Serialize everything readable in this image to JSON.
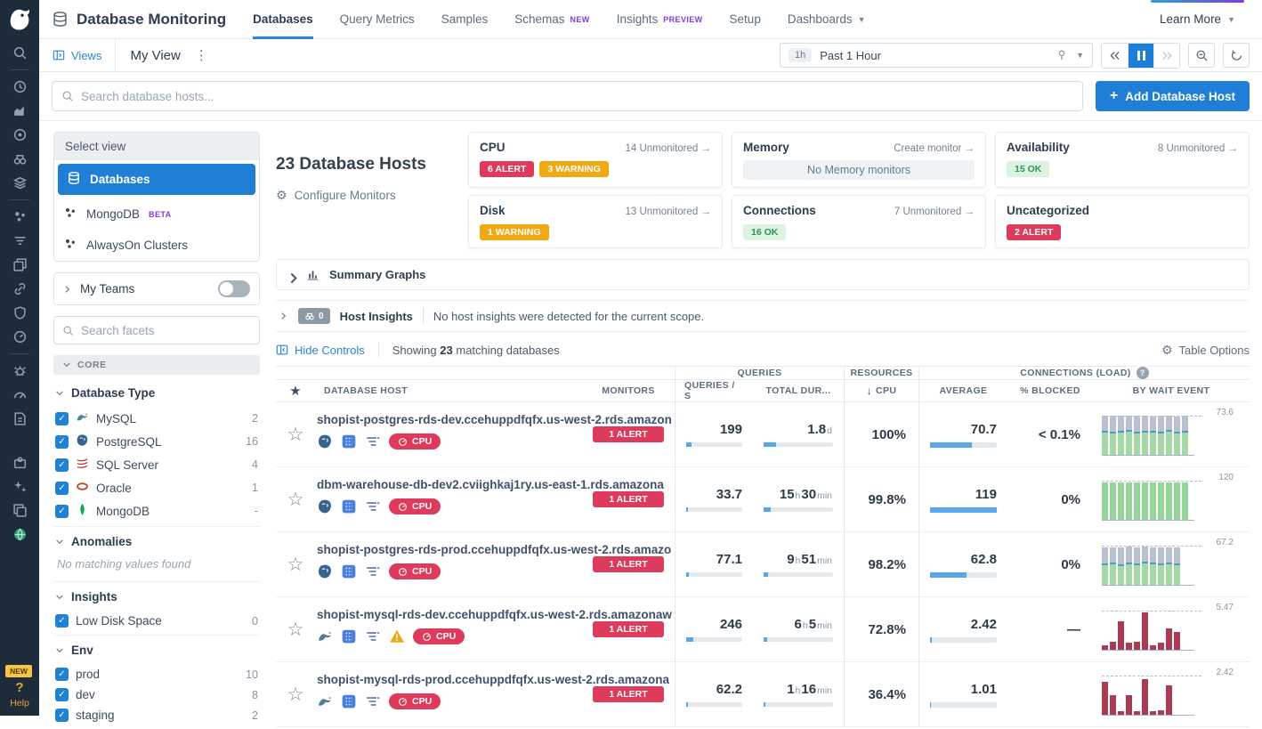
{
  "colors": {
    "accent_blue": "#1f7fd6",
    "alert_red": "#de3b5c",
    "warning_orange": "#f0a913",
    "ok_green": "#2d9552",
    "beta_purple": "#8637e0",
    "rail_bg": "#1e2b3a"
  },
  "topnav": {
    "title": "Database Monitoring",
    "tabs": [
      {
        "label": "Databases",
        "active": true
      },
      {
        "label": "Query Metrics"
      },
      {
        "label": "Samples"
      },
      {
        "label": "Schemas",
        "badge": "NEW"
      },
      {
        "label": "Insights",
        "badge": "PREVIEW"
      },
      {
        "label": "Setup"
      },
      {
        "label": "Dashboards",
        "caret": true
      }
    ],
    "learn_more": "Learn More"
  },
  "toolbar": {
    "views_label": "Views",
    "view_name": "My View",
    "time_chip": "1h",
    "time_label": "Past 1 Hour"
  },
  "search": {
    "placeholder": "Search database hosts...",
    "add_button": "Add Database Host"
  },
  "rail": {
    "items": [
      "search",
      "|",
      "history",
      "area-chart",
      "target",
      "binoculars",
      "layers",
      "|",
      "cluster",
      "filter",
      "windows",
      "link",
      "shield",
      "gauge",
      "|",
      "bug",
      "speedometer",
      "doc-search",
      "gap",
      "puzzle",
      "sparkles",
      "copy",
      "globe"
    ],
    "new_badge": "NEW",
    "help_q": "?",
    "help_label": "Help"
  },
  "facets": {
    "select_view": {
      "header": "Select view",
      "items": [
        {
          "label": "Databases",
          "icon": "database",
          "active": true
        },
        {
          "label": "MongoDB",
          "icon": "cluster",
          "badge": "BETA"
        },
        {
          "label": "AlwaysOn Clusters",
          "icon": "cluster"
        }
      ]
    },
    "my_teams": "My Teams",
    "search_placeholder": "Search facets",
    "core_label": "CORE",
    "groups": [
      {
        "title": "Database Type",
        "items": [
          {
            "label": "MySQL",
            "count": "2",
            "icon": "mysql"
          },
          {
            "label": "PostgreSQL",
            "count": "16",
            "icon": "postgres"
          },
          {
            "label": "SQL Server",
            "count": "4",
            "icon": "sqlserver"
          },
          {
            "label": "Oracle",
            "count": "1",
            "icon": "oracle"
          },
          {
            "label": "MongoDB",
            "count": "-",
            "icon": "mongodb"
          }
        ]
      },
      {
        "title": "Anomalies",
        "empty_message": "No matching values found",
        "items": []
      },
      {
        "title": "Insights",
        "items": [
          {
            "label": "Low Disk Space",
            "count": "0"
          }
        ]
      },
      {
        "title": "Env",
        "items": [
          {
            "label": "prod",
            "count": "10"
          },
          {
            "label": "dev",
            "count": "8"
          },
          {
            "label": "staging",
            "count": "2"
          }
        ]
      }
    ]
  },
  "overview": {
    "title": "23 Database Hosts",
    "configure": "Configure Monitors",
    "cards": [
      {
        "title": "CPU",
        "action": "14 Unmonitored",
        "badges": [
          {
            "text": "6 ALERT",
            "type": "alert"
          },
          {
            "text": "3 WARNING",
            "type": "warning"
          }
        ]
      },
      {
        "title": "Memory",
        "action": "Create monitor",
        "note": "No Memory monitors"
      },
      {
        "title": "Availability",
        "action": "8 Unmonitored",
        "badges": [
          {
            "text": "15 OK",
            "type": "ok"
          }
        ]
      },
      {
        "title": "Disk",
        "action": "13 Unmonitored",
        "badges": [
          {
            "text": "1 WARNING",
            "type": "warning"
          }
        ]
      },
      {
        "title": "Connections",
        "action": "7 Unmonitored",
        "badges": [
          {
            "text": "16 OK",
            "type": "ok"
          }
        ]
      },
      {
        "title": "Uncategorized",
        "badges": [
          {
            "text": "2 ALERT",
            "type": "alert"
          }
        ]
      }
    ]
  },
  "summary_graphs": {
    "label": "Summary Graphs"
  },
  "host_insights": {
    "count": "0",
    "label": "Host Insights",
    "message": "No host insights were detected for the current scope."
  },
  "controls": {
    "hide_label": "Hide Controls",
    "showing_prefix": "Showing",
    "showing_count": "23",
    "showing_suffix": "matching databases",
    "table_options": "Table Options"
  },
  "table": {
    "group_headers": {
      "queries": "QUERIES",
      "resources": "RESOURCES",
      "connections": "CONNECTIONS (LOAD)"
    },
    "columns": {
      "host": "DATABASE HOST",
      "monitors": "MONITORS",
      "queries_s": "QUERIES / S",
      "total_dur": "TOTAL DUR...",
      "cpu": "CPU",
      "average": "AVERAGE",
      "blocked": "% BLOCKED",
      "wait": "BY WAIT EVENT"
    },
    "rows": [
      {
        "host": "shopist-postgres-rds-dev.ccehuppdfqfx.us-west-2.rds.amazon",
        "icons": [
          "postgres",
          "rds",
          "pipeline"
        ],
        "tags": [
          "CPU"
        ],
        "monitor": "1 ALERT",
        "queries": {
          "v": "199",
          "bar": 10
        },
        "dur": {
          "parts": [
            [
              "1.8",
              "d"
            ]
          ],
          "bar": 18
        },
        "cpu": "100%",
        "avg": {
          "v": "70.7",
          "bar": 62
        },
        "blocked": "< 0.1%",
        "wait": {
          "label": "73.6",
          "kind": "stacked",
          "bars": [
            [
              0.57,
              0.38
            ],
            [
              0.55,
              0.4
            ],
            [
              0.56,
              0.39
            ],
            [
              0.6,
              0.35
            ],
            [
              0.54,
              0.42
            ],
            [
              0.57,
              0.39
            ],
            [
              0.56,
              0.38
            ],
            [
              0.55,
              0.41
            ],
            [
              0.58,
              0.37
            ],
            [
              0.54,
              0.4
            ],
            [
              0.57,
              0.38
            ]
          ]
        }
      },
      {
        "host": "dbm-warehouse-db-dev2.cviighkaj1ry.us-east-1.rds.amazona",
        "icons": [
          "postgres",
          "rds",
          "pipeline"
        ],
        "tags": [
          "CPU"
        ],
        "monitor": "1 ALERT",
        "queries": {
          "v": "33.7",
          "bar": 3
        },
        "dur": {
          "parts": [
            [
              "15",
              "h"
            ],
            [
              "30",
              "min"
            ]
          ],
          "bar": 10
        },
        "cpu": "99.8%",
        "avg": {
          "v": "119",
          "bar": 100
        },
        "blocked": "0%",
        "wait": {
          "label": "120",
          "kind": "green",
          "bars": [
            0.95,
            0.95,
            0.95,
            0.95,
            0.95,
            0.95,
            0.95,
            0.95,
            0.95,
            0.95,
            0.95
          ]
        }
      },
      {
        "host": "shopist-postgres-rds-prod.ccehuppdfqfx.us-west-2.rds.amazo",
        "icons": [
          "postgres",
          "rds",
          "pipeline"
        ],
        "tags": [
          "CPU"
        ],
        "monitor": "1 ALERT",
        "queries": {
          "v": "77.1",
          "bar": 4
        },
        "dur": {
          "parts": [
            [
              "9",
              "h"
            ],
            [
              "51",
              "min"
            ]
          ],
          "bar": 6
        },
        "cpu": "98.2%",
        "avg": {
          "v": "62.8",
          "bar": 55
        },
        "blocked": "0%",
        "wait": {
          "label": "67.2",
          "kind": "stacked",
          "bars": [
            [
              0.5,
              0.42
            ],
            [
              0.52,
              0.4
            ],
            [
              0.48,
              0.44
            ],
            [
              0.53,
              0.4
            ],
            [
              0.5,
              0.42
            ],
            [
              0.55,
              0.38
            ],
            [
              0.52,
              0.4
            ],
            [
              0.5,
              0.42
            ],
            [
              0.53,
              0.38
            ],
            [
              0.5,
              0.4
            ]
          ]
        }
      },
      {
        "host": "shopist-mysql-rds-dev.ccehuppdfqfx.us-west-2.rds.amazonaw",
        "icons": [
          "mysql",
          "rds",
          "pipeline",
          "warning"
        ],
        "tags": [
          "CPU"
        ],
        "monitor": "1 ALERT",
        "queries": {
          "v": "246",
          "bar": 12
        },
        "dur": {
          "parts": [
            [
              "6",
              "h"
            ],
            [
              "5",
              "min"
            ]
          ],
          "bar": 5
        },
        "cpu": "72.8%",
        "avg": {
          "v": "2.42",
          "bar": 2
        },
        "blocked": "—",
        "wait": {
          "label": "5.47",
          "kind": "red",
          "bars": [
            0.12,
            0.2,
            0.72,
            0.18,
            0.2,
            0.95,
            0.12,
            0.18,
            0.55,
            0.45
          ]
        }
      },
      {
        "host": "shopist-mysql-rds-prod.ccehuppdfqfx.us-west-2.rds.amazona",
        "icons": [
          "mysql",
          "rds",
          "pipeline"
        ],
        "tags": [
          "CPU"
        ],
        "monitor": "1 ALERT",
        "queries": {
          "v": "62.2",
          "bar": 3
        },
        "dur": {
          "parts": [
            [
              "1",
              "h"
            ],
            [
              "16",
              "min"
            ]
          ],
          "bar": 2
        },
        "cpu": "36.4%",
        "avg": {
          "v": "1.01",
          "bar": 1
        },
        "blocked": "",
        "wait": {
          "label": "2.42",
          "kind": "red",
          "bars": [
            0.85,
            0.5,
            0.1,
            0.5,
            0.1,
            0.9,
            0.1,
            0.12,
            0.75
          ]
        }
      }
    ]
  }
}
